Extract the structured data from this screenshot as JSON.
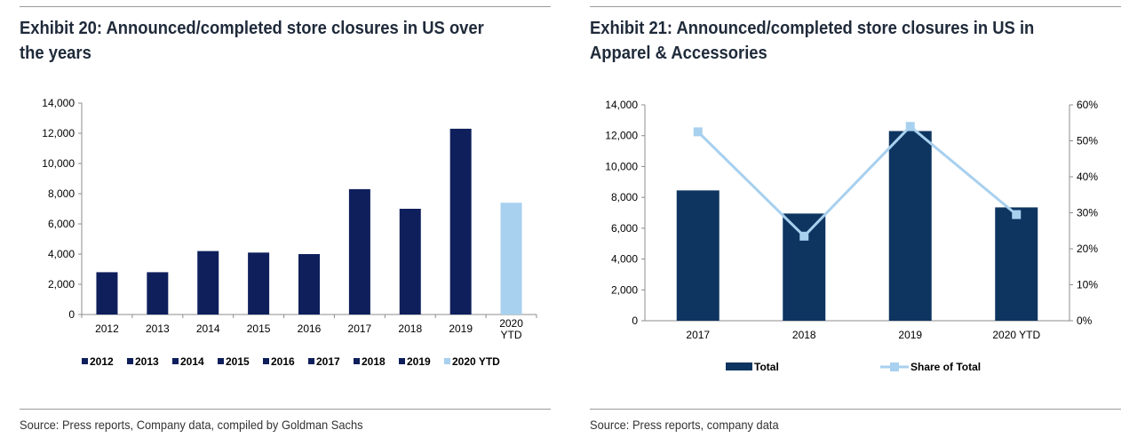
{
  "colors": {
    "navy": "#0f1f5c",
    "dark_blue": "#0d3560",
    "light_blue": "#a8d0ef",
    "axis": "#8c8c8c",
    "rule": "#9a9a9a"
  },
  "exhibit20": {
    "title": "Exhibit 20: Announced/completed store closures in US over the years",
    "source": "Source: Press reports, Company data, compiled by Goldman Sachs"
  },
  "exhibit21": {
    "title": "Exhibit 21: Announced/completed store closures in US in Apparel & Accessories",
    "source": "Source: Press reports, company data"
  },
  "chart_data": [
    {
      "type": "bar",
      "title": "Exhibit 20: Announced/completed store closures in US over the years",
      "categories": [
        "2012",
        "2013",
        "2014",
        "2015",
        "2016",
        "2017",
        "2018",
        "2019",
        "2020 YTD"
      ],
      "category_lines": [
        [
          "2012"
        ],
        [
          "2013"
        ],
        [
          "2014"
        ],
        [
          "2015"
        ],
        [
          "2016"
        ],
        [
          "2017"
        ],
        [
          "2018"
        ],
        [
          "2019"
        ],
        [
          "2020",
          "YTD"
        ]
      ],
      "values": [
        2800,
        2800,
        4200,
        4100,
        4000,
        8300,
        7000,
        12300,
        7400
      ],
      "bar_colors": [
        "#0f1f5c",
        "#0f1f5c",
        "#0f1f5c",
        "#0f1f5c",
        "#0f1f5c",
        "#0f1f5c",
        "#0f1f5c",
        "#0f1f5c",
        "#a8d0ef"
      ],
      "legend": [
        "2012",
        "2013",
        "2014",
        "2015",
        "2016",
        "2017",
        "2018",
        "2019",
        "2020 YTD"
      ],
      "legend_position": "bottom",
      "ylim": [
        0,
        14000
      ],
      "yticks": [
        "0",
        "2,000",
        "4,000",
        "6,000",
        "8,000",
        "10,000",
        "12,000",
        "14,000"
      ],
      "grid": false
    },
    {
      "type": "bar",
      "title": "Exhibit 21: Announced/completed store closures in US in Apparel & Accessories",
      "categories": [
        "2017",
        "2018",
        "2019",
        "2020 YTD"
      ],
      "series": [
        {
          "name": "Total",
          "type": "bar",
          "axis": "left",
          "values": [
            8450,
            6950,
            12300,
            7350
          ]
        },
        {
          "name": "Share of Total",
          "type": "line",
          "axis": "right",
          "values": [
            52.5,
            23.5,
            54,
            29.5
          ]
        }
      ],
      "legend": [
        "Total",
        "Share of Total"
      ],
      "legend_position": "bottom",
      "ylim": [
        0,
        14000
      ],
      "yticks": [
        "0",
        "2,000",
        "4,000",
        "6,000",
        "8,000",
        "10,000",
        "12,000",
        "14,000"
      ],
      "y2lim": [
        0,
        60
      ],
      "y2ticks": [
        "0%",
        "10%",
        "20%",
        "30%",
        "40%",
        "50%",
        "60%"
      ],
      "grid": false
    }
  ]
}
